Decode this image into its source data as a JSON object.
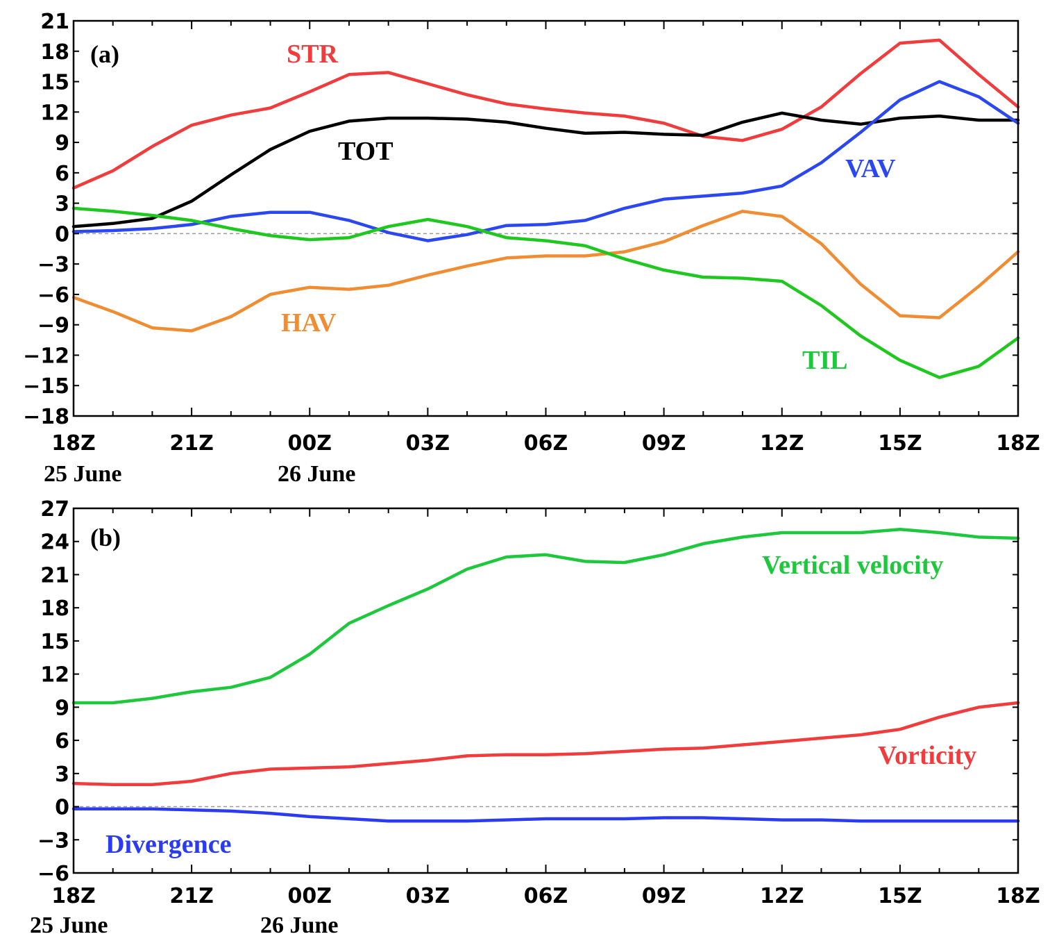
{
  "chart_data": [
    {
      "type": "line",
      "panel_label": "(a)",
      "x_tick_labels": [
        "18Z",
        "21Z",
        "00Z",
        "03Z",
        "06Z",
        "09Z",
        "12Z",
        "15Z",
        "18Z"
      ],
      "date_labels": [
        "25 June",
        "26 June"
      ],
      "x": [
        0,
        1,
        2,
        3,
        4,
        5,
        6,
        7,
        8,
        9,
        10,
        11,
        12,
        13,
        14,
        15,
        16,
        17,
        18,
        19,
        20,
        21,
        22,
        23,
        24
      ],
      "ylim": [
        -18,
        21
      ],
      "y_ticks": [
        21,
        18,
        15,
        12,
        9,
        6,
        3,
        0,
        -3,
        -6,
        -9,
        -12,
        -15,
        -18
      ],
      "zero_line": true,
      "series": [
        {
          "name": "STR",
          "color": "#f03c3c",
          "values": [
            4.5,
            6.2,
            8.6,
            10.7,
            11.7,
            12.4,
            14.0,
            15.7,
            15.9,
            14.8,
            13.7,
            12.8,
            12.3,
            11.9,
            11.6,
            10.9,
            9.6,
            9.2,
            10.3,
            12.5,
            15.8,
            18.8,
            19.1,
            15.7,
            12.5
          ]
        },
        {
          "name": "TOT",
          "color": "#000000",
          "values": [
            0.7,
            1.0,
            1.5,
            3.2,
            5.8,
            8.3,
            10.1,
            11.1,
            11.4,
            11.4,
            11.3,
            11.0,
            10.4,
            9.9,
            10.0,
            9.8,
            9.7,
            11.0,
            11.9,
            11.2,
            10.8,
            11.4,
            11.6,
            11.2,
            11.2
          ]
        },
        {
          "name": "VAV",
          "color": "#2b48f0",
          "values": [
            0.2,
            0.3,
            0.5,
            0.9,
            1.7,
            2.1,
            2.1,
            1.3,
            0.1,
            -0.7,
            -0.1,
            0.8,
            0.9,
            1.3,
            2.5,
            3.4,
            3.7,
            4.0,
            4.7,
            7.0,
            10.0,
            13.2,
            15.0,
            13.5,
            10.9
          ]
        },
        {
          "name": "HAV",
          "color": "#f08c32",
          "values": [
            -6.3,
            -7.7,
            -9.3,
            -9.6,
            -8.2,
            -6.0,
            -5.3,
            -5.5,
            -5.1,
            -4.1,
            -3.2,
            -2.4,
            -2.2,
            -2.2,
            -1.8,
            -0.8,
            0.8,
            2.2,
            1.7,
            -1.0,
            -5.0,
            -8.1,
            -8.3,
            -5.2,
            -1.8
          ]
        },
        {
          "name": "TIL",
          "color": "#1ec81e",
          "values": [
            2.5,
            2.2,
            1.8,
            1.3,
            0.5,
            -0.2,
            -0.6,
            -0.4,
            0.7,
            1.4,
            0.7,
            -0.4,
            -0.7,
            -1.2,
            -2.5,
            -3.6,
            -4.3,
            -4.4,
            -4.7,
            -7.1,
            -10.1,
            -12.5,
            -14.2,
            -13.1,
            -10.3
          ]
        }
      ]
    },
    {
      "type": "line",
      "panel_label": "(b)",
      "x_tick_labels": [
        "18Z",
        "21Z",
        "00Z",
        "03Z",
        "06Z",
        "09Z",
        "12Z",
        "15Z",
        "18Z"
      ],
      "date_labels": [
        "25 June",
        "26 June"
      ],
      "x": [
        0,
        1,
        2,
        3,
        4,
        5,
        6,
        7,
        8,
        9,
        10,
        11,
        12,
        13,
        14,
        15,
        16,
        17,
        18,
        19,
        20,
        21,
        22,
        23,
        24
      ],
      "ylim": [
        -6,
        27
      ],
      "y_ticks": [
        27,
        24,
        21,
        18,
        15,
        12,
        9,
        6,
        3,
        0,
        -3,
        -6
      ],
      "zero_line": true,
      "series": [
        {
          "name": "Vertical velocity",
          "color": "#1ec83c",
          "values": [
            9.4,
            9.4,
            9.8,
            10.4,
            10.8,
            11.7,
            13.8,
            16.6,
            18.2,
            19.7,
            21.5,
            22.6,
            22.8,
            22.2,
            22.1,
            22.8,
            23.8,
            24.4,
            24.8,
            24.8,
            24.8,
            25.1,
            24.8,
            24.4,
            24.3
          ]
        },
        {
          "name": "Vorticity",
          "color": "#f03c3c",
          "values": [
            2.1,
            2.0,
            2.0,
            2.3,
            3.0,
            3.4,
            3.5,
            3.6,
            3.9,
            4.2,
            4.6,
            4.7,
            4.7,
            4.8,
            5.0,
            5.2,
            5.3,
            5.6,
            5.9,
            6.2,
            6.5,
            7.0,
            8.1,
            9.0,
            9.4
          ]
        },
        {
          "name": "Divergence",
          "color": "#2b3cf0",
          "values": [
            -0.2,
            -0.2,
            -0.2,
            -0.3,
            -0.4,
            -0.6,
            -0.9,
            -1.1,
            -1.3,
            -1.3,
            -1.3,
            -1.2,
            -1.1,
            -1.1,
            -1.1,
            -1.0,
            -1.0,
            -1.1,
            -1.2,
            -1.2,
            -1.3,
            -1.3,
            -1.3,
            -1.3,
            -1.3
          ]
        }
      ]
    }
  ]
}
